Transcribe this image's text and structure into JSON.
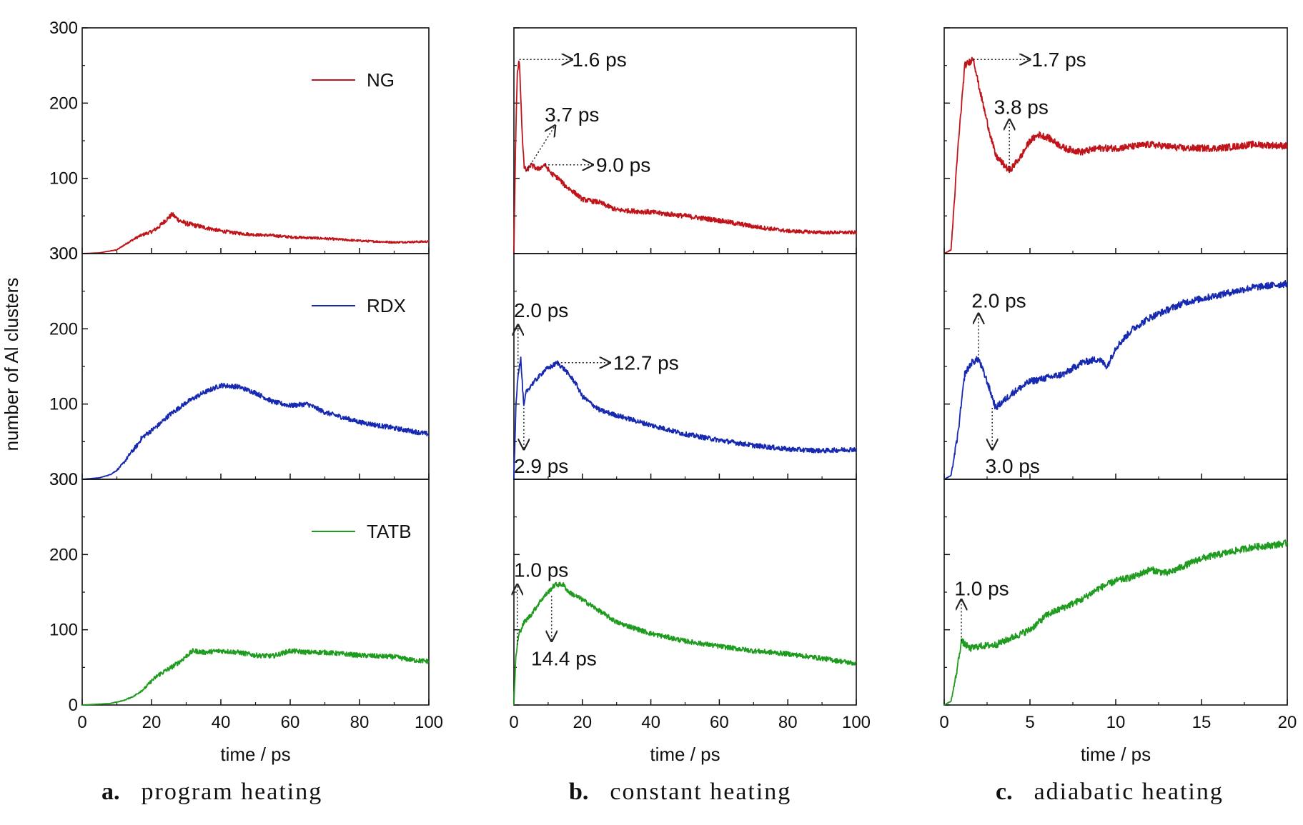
{
  "colors": {
    "NG": "#c0141b",
    "RDX": "#1629b0",
    "TATB": "#1f9b1f",
    "annotation": "#222222"
  },
  "chart_data": [
    {
      "type": "line",
      "panel_label": "a.",
      "panel_title": "program heating",
      "xlabel": "time / ps",
      "ylabel": "number of Al clusters",
      "xlim": [
        0,
        100
      ],
      "xticks": [
        0,
        20,
        40,
        60,
        80,
        100
      ],
      "ylim": [
        0,
        300
      ],
      "yticks": [
        0,
        100,
        200,
        300
      ],
      "grid": false,
      "series": [
        {
          "name": "NG",
          "x": [
            0,
            5,
            10,
            13,
            16,
            18,
            20,
            22,
            24,
            26,
            28,
            30,
            35,
            40,
            45,
            50,
            55,
            60,
            70,
            80,
            90,
            100
          ],
          "y": [
            0,
            1,
            5,
            14,
            22,
            26,
            29,
            35,
            44,
            52,
            44,
            40,
            35,
            30,
            27,
            25,
            24,
            22,
            20,
            17,
            15,
            16
          ]
        },
        {
          "name": "RDX",
          "x": [
            0,
            5,
            8,
            10,
            12,
            14,
            16,
            17,
            18,
            20,
            22,
            25,
            30,
            35,
            40,
            45,
            50,
            55,
            60,
            65,
            70,
            80,
            90,
            100
          ],
          "y": [
            0,
            2,
            6,
            12,
            22,
            35,
            46,
            54,
            58,
            65,
            72,
            85,
            102,
            115,
            125,
            123,
            115,
            103,
            98,
            100,
            89,
            76,
            68,
            60
          ]
        },
        {
          "name": "TATB",
          "x": [
            0,
            8,
            12,
            15,
            18,
            20,
            22,
            25,
            28,
            30,
            32,
            35,
            40,
            45,
            50,
            55,
            60,
            65,
            70,
            75,
            80,
            85,
            90,
            95,
            100
          ],
          "y": [
            0,
            2,
            6,
            12,
            22,
            32,
            40,
            48,
            57,
            65,
            72,
            70,
            72,
            70,
            66,
            65,
            72,
            70,
            70,
            68,
            66,
            65,
            64,
            60,
            58
          ]
        }
      ],
      "legend": {
        "entries": [
          "NG",
          "RDX",
          "TATB"
        ],
        "placement": "upper-right of each subplot"
      }
    },
    {
      "type": "line",
      "panel_label": "b.",
      "panel_title": "constant heating",
      "xlabel": "time / ps",
      "xlim": [
        0,
        100
      ],
      "xticks": [
        0,
        20,
        40,
        60,
        80,
        100
      ],
      "ylim": [
        0,
        300
      ],
      "series": [
        {
          "name": "NG",
          "x": [
            0,
            0.5,
            1,
            1.6,
            2,
            2.5,
            3,
            3.7,
            5,
            7,
            9,
            11,
            13,
            15,
            18,
            20,
            25,
            30,
            40,
            50,
            60,
            70,
            80,
            90,
            100
          ],
          "y": [
            0,
            150,
            240,
            258,
            210,
            150,
            115,
            110,
            118,
            112,
            118,
            106,
            100,
            90,
            80,
            72,
            68,
            58,
            55,
            50,
            44,
            36,
            30,
            28,
            28
          ]
        },
        {
          "name": "RDX",
          "x": [
            0,
            0.6,
            1.2,
            2,
            2.9,
            3.5,
            5,
            7,
            9,
            11,
            12.7,
            15,
            18,
            20,
            25,
            30,
            40,
            50,
            60,
            70,
            80,
            90,
            100
          ],
          "y": [
            0,
            100,
            140,
            160,
            95,
            115,
            125,
            135,
            145,
            150,
            155,
            145,
            128,
            110,
            92,
            85,
            72,
            60,
            52,
            45,
            40,
            38,
            40
          ]
        },
        {
          "name": "TATB",
          "x": [
            0,
            0.5,
            1,
            1.5,
            3,
            5,
            8,
            10,
            12,
            14.4,
            16,
            20,
            25,
            30,
            40,
            50,
            60,
            70,
            80,
            90,
            100
          ],
          "y": [
            0,
            60,
            80,
            95,
            110,
            120,
            140,
            150,
            160,
            160,
            150,
            140,
            125,
            110,
            95,
            85,
            78,
            72,
            68,
            62,
            55
          ]
        }
      ],
      "annotations": [
        {
          "series": "NG",
          "text": "1.6 ps"
        },
        {
          "series": "NG",
          "text": "3.7 ps"
        },
        {
          "series": "NG",
          "text": "9.0 ps"
        },
        {
          "series": "RDX",
          "text": "2.0 ps"
        },
        {
          "series": "RDX",
          "text": "12.7 ps"
        },
        {
          "series": "RDX",
          "text": "2.9 ps"
        },
        {
          "series": "TATB",
          "text": "1.0 ps"
        },
        {
          "series": "TATB",
          "text": "14.4 ps"
        }
      ]
    },
    {
      "type": "line",
      "panel_label": "c.",
      "panel_title": "adiabatic heating",
      "xlabel": "time / ps",
      "xlim": [
        0,
        20
      ],
      "xticks": [
        0,
        5,
        10,
        15,
        20
      ],
      "ylim": [
        0,
        300
      ],
      "series": [
        {
          "name": "NG",
          "x": [
            0,
            0.4,
            0.8,
            1.2,
            1.5,
            1.7,
            2,
            2.5,
            3,
            3.8,
            4.5,
            5,
            5.5,
            6,
            7,
            8,
            9,
            10,
            12,
            14,
            16,
            18,
            20
          ],
          "y": [
            0,
            5,
            140,
            250,
            255,
            260,
            225,
            175,
            130,
            110,
            130,
            150,
            158,
            155,
            140,
            135,
            140,
            140,
            145,
            140,
            140,
            145,
            143
          ]
        },
        {
          "name": "RDX",
          "x": [
            0,
            0.4,
            0.8,
            1.2,
            1.6,
            2,
            2.5,
            3,
            3.5,
            4,
            5,
            6,
            7,
            8,
            9,
            9.5,
            10,
            11,
            12,
            14,
            16,
            18,
            20
          ],
          "y": [
            0,
            5,
            60,
            140,
            155,
            160,
            130,
            95,
            105,
            115,
            130,
            135,
            140,
            155,
            160,
            150,
            175,
            200,
            215,
            235,
            245,
            255,
            260
          ]
        },
        {
          "name": "TATB",
          "x": [
            0,
            0.4,
            0.7,
            1,
            1.5,
            2,
            3,
            4,
            5,
            6,
            7,
            8,
            9,
            10,
            11,
            12,
            13,
            14,
            15,
            16,
            17,
            18,
            19,
            20
          ],
          "y": [
            0,
            5,
            40,
            85,
            75,
            78,
            80,
            90,
            100,
            120,
            130,
            140,
            155,
            165,
            170,
            180,
            175,
            185,
            195,
            200,
            205,
            210,
            212,
            215
          ]
        }
      ],
      "annotations": [
        {
          "series": "NG",
          "text": "1.7 ps"
        },
        {
          "series": "NG",
          "text": "3.8 ps"
        },
        {
          "series": "RDX",
          "text": "2.0 ps"
        },
        {
          "series": "RDX",
          "text": "3.0 ps"
        },
        {
          "series": "TATB",
          "text": "1.0 ps"
        }
      ]
    }
  ]
}
